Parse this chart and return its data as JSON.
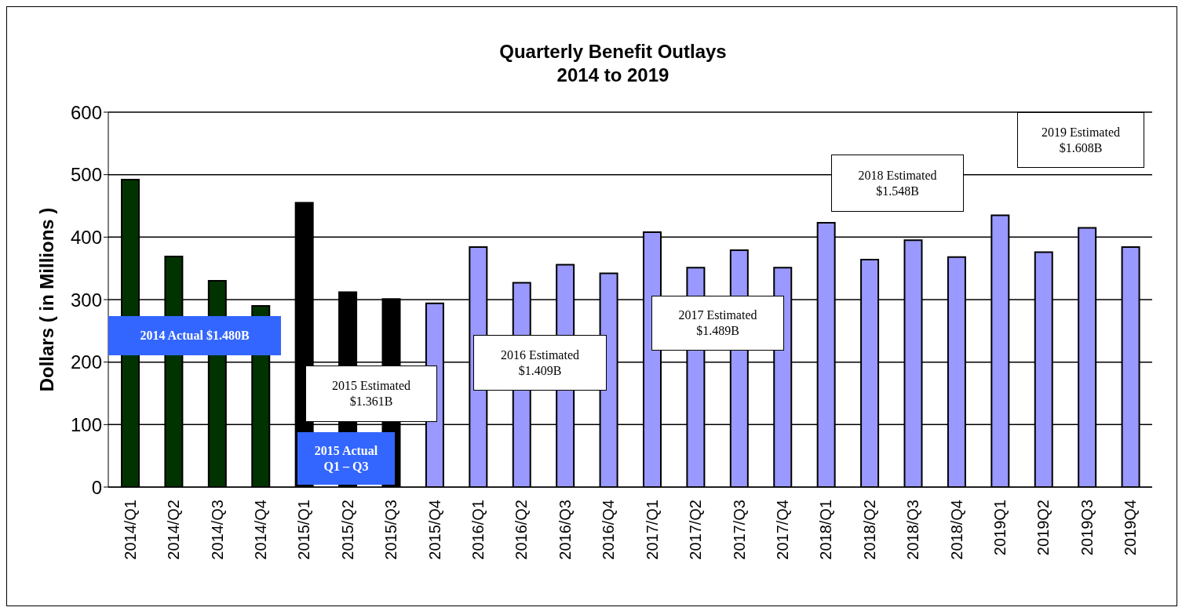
{
  "chart_data": {
    "type": "bar",
    "title": "Quarterly Benefit Outlays",
    "subtitle": "2014 to 2019",
    "ylabel": "Dollars ( in Millions )",
    "categories": [
      "2014/Q1",
      "2014/Q2",
      "2014/Q3",
      "2014/Q4",
      "2015/Q1",
      "2015/Q2",
      "2015/Q3",
      "2015/Q4",
      "2016/Q1",
      "2016/Q2",
      "2016/Q3",
      "2016/Q4",
      "2017/Q1",
      "2017/Q2",
      "2017/Q3",
      "2017/Q4",
      "2018/Q1",
      "2018/Q2",
      "2018/Q3",
      "2018/Q4",
      "2019Q1",
      "2019Q2",
      "2019Q3",
      "2019Q4"
    ],
    "values": [
      492,
      369,
      330,
      290,
      455,
      312,
      301,
      294,
      384,
      327,
      356,
      342,
      408,
      351,
      379,
      351,
      423,
      364,
      395,
      368,
      435,
      376,
      415,
      384
    ],
    "colors": [
      "#003300",
      "#003300",
      "#003300",
      "#003300",
      "#000000",
      "#000000",
      "#000000",
      "#9999ff",
      "#9999ff",
      "#9999ff",
      "#9999ff",
      "#9999ff",
      "#9999ff",
      "#9999ff",
      "#9999ff",
      "#9999ff",
      "#9999ff",
      "#9999ff",
      "#9999ff",
      "#9999ff",
      "#9999ff",
      "#9999ff",
      "#9999ff",
      "#9999ff"
    ],
    "ylim": [
      0,
      600
    ],
    "yticks": [
      0,
      100,
      200,
      300,
      400,
      500,
      600
    ],
    "grid": "y",
    "legend": false,
    "annotations": [
      "2014 Actual $1.480B",
      "2015 Estimated\n$1.361B",
      "2015 Actual\nQ1 – Q3",
      "2016 Estimated\n$1.409B",
      "2017 Estimated\n$1.489B",
      "2018 Estimated\n$1.548B",
      "2019 Estimated\n$1.608B"
    ]
  }
}
